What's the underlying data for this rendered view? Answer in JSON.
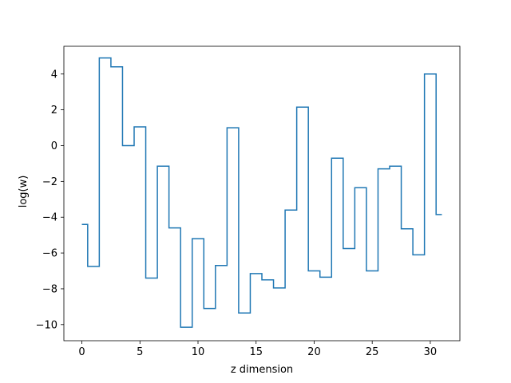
{
  "chart_data": {
    "type": "line",
    "drawstyle": "steps-mid",
    "title": "",
    "xlabel": "z dimension",
    "ylabel": "log(w)",
    "xlim": [
      -1.55,
      32.55
    ],
    "ylim": [
      -10.9,
      5.55
    ],
    "xticks": [
      0,
      5,
      10,
      15,
      20,
      25,
      30
    ],
    "yticks": [
      -10,
      -8,
      -6,
      -4,
      -2,
      0,
      2,
      4
    ],
    "ytick_labels": [
      "−10",
      "−8",
      "−6",
      "−4",
      "−2",
      "0",
      "2",
      "4"
    ],
    "grid": false,
    "legend": "none",
    "line_color": "#1f77b4",
    "x": [
      0,
      1,
      2,
      3,
      4,
      5,
      6,
      7,
      8,
      9,
      10,
      11,
      12,
      13,
      14,
      15,
      16,
      17,
      18,
      19,
      20,
      21,
      22,
      23,
      24,
      25,
      26,
      27,
      28,
      29,
      30,
      31
    ],
    "series": [
      {
        "values": [
          -4.4,
          -6.75,
          4.9,
          4.4,
          0.0,
          1.05,
          -7.4,
          -1.15,
          -4.6,
          -10.15,
          -5.2,
          -9.1,
          -6.7,
          1.0,
          -9.35,
          -7.15,
          -7.5,
          -7.95,
          -3.6,
          2.15,
          -7.0,
          -7.35,
          -0.7,
          -5.75,
          -2.35,
          -7.0,
          -1.3,
          -1.15,
          -4.65,
          -6.1,
          4.0,
          -3.85
        ]
      }
    ]
  }
}
